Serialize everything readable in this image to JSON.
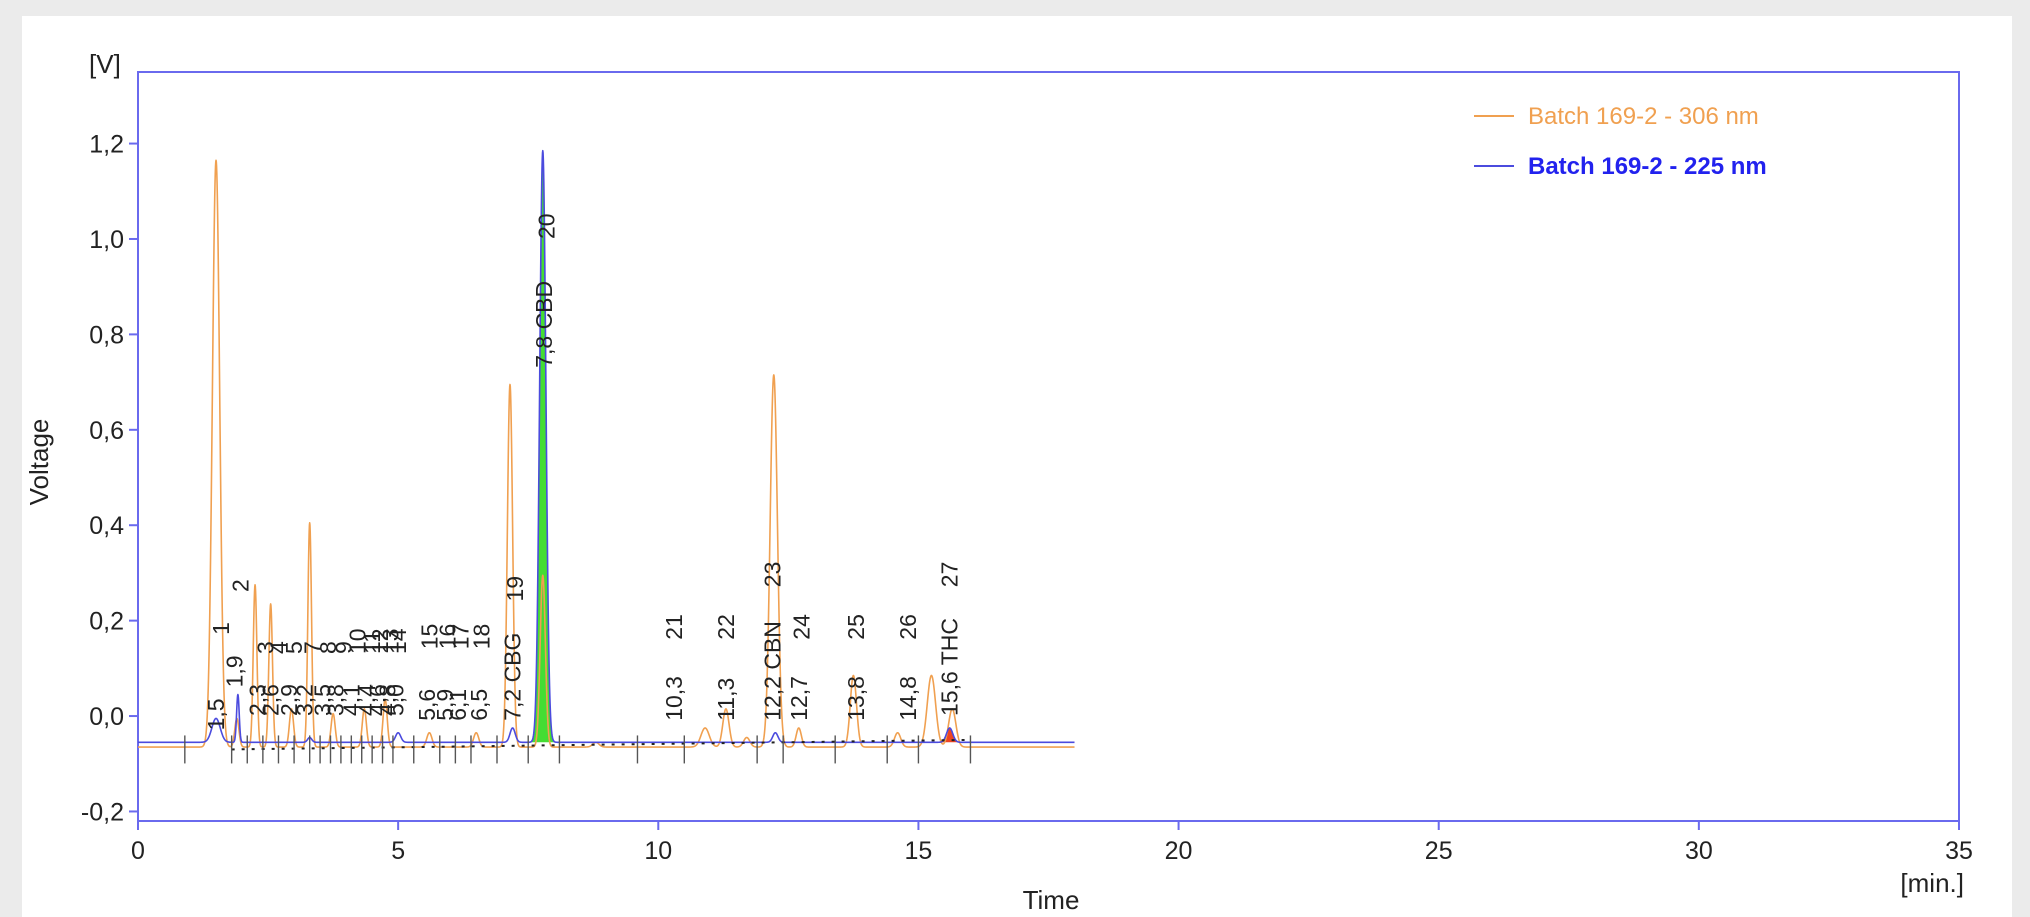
{
  "chart_data": {
    "type": "line",
    "title": "",
    "xlabel": "Time",
    "ylabel": "Voltage",
    "x_unit": "[min.]",
    "y_unit": "[V]",
    "xlim": [
      0,
      35
    ],
    "ylim": [
      -0.22,
      1.35
    ],
    "x_ticks": [
      0,
      5,
      10,
      15,
      20,
      25,
      30,
      35
    ],
    "x_tick_labels": [
      "0",
      "5",
      "10",
      "15",
      "20",
      "25",
      "30",
      "35"
    ],
    "y_ticks": [
      -0.2,
      0.0,
      0.2,
      0.4,
      0.6,
      0.8,
      1.0,
      1.2
    ],
    "y_tick_labels": [
      "-0,2",
      "0,0",
      "0,2",
      "0,4",
      "0,6",
      "0,8",
      "1,0",
      "1,2"
    ],
    "grid": false,
    "legend": "top-right",
    "series": [
      {
        "name": "Batch 169-2 - 306 nm",
        "color": "#f0a050",
        "baseline": -0.065,
        "peaks": [
          {
            "t": 1.5,
            "h": 1.23,
            "w": 0.07
          },
          {
            "t": 1.9,
            "h": 0.06,
            "w": 0.04
          },
          {
            "t": 2.25,
            "h": 0.34,
            "w": 0.035
          },
          {
            "t": 2.55,
            "h": 0.3,
            "w": 0.035
          },
          {
            "t": 2.95,
            "h": 0.08,
            "w": 0.04
          },
          {
            "t": 3.3,
            "h": 0.47,
            "w": 0.035
          },
          {
            "t": 3.75,
            "h": 0.07,
            "w": 0.04
          },
          {
            "t": 4.35,
            "h": 0.08,
            "w": 0.04
          },
          {
            "t": 4.75,
            "h": 0.1,
            "w": 0.04
          },
          {
            "t": 5.6,
            "h": 0.03,
            "w": 0.05
          },
          {
            "t": 6.5,
            "h": 0.03,
            "w": 0.05
          },
          {
            "t": 7.15,
            "h": 0.76,
            "w": 0.05
          },
          {
            "t": 7.78,
            "h": 0.36,
            "w": 0.05
          },
          {
            "t": 8.8,
            "h": 0.01,
            "w": 0.06
          },
          {
            "t": 10.9,
            "h": 0.04,
            "w": 0.08
          },
          {
            "t": 11.3,
            "h": 0.08,
            "w": 0.06
          },
          {
            "t": 11.7,
            "h": 0.02,
            "w": 0.06
          },
          {
            "t": 12.22,
            "h": 0.78,
            "w": 0.07
          },
          {
            "t": 12.7,
            "h": 0.04,
            "w": 0.05
          },
          {
            "t": 13.75,
            "h": 0.15,
            "w": 0.06
          },
          {
            "t": 14.6,
            "h": 0.03,
            "w": 0.06
          },
          {
            "t": 15.25,
            "h": 0.15,
            "w": 0.08
          },
          {
            "t": 15.65,
            "h": 0.08,
            "w": 0.07
          }
        ]
      },
      {
        "name": "Batch 169-2 - 225 nm",
        "color": "#4b4bde",
        "baseline": -0.055,
        "peaks": [
          {
            "t": 1.5,
            "h": 0.05,
            "w": 0.08
          },
          {
            "t": 1.92,
            "h": 0.1,
            "w": 0.025
          },
          {
            "t": 3.3,
            "h": 0.01,
            "w": 0.04
          },
          {
            "t": 5.0,
            "h": 0.02,
            "w": 0.05
          },
          {
            "t": 7.2,
            "h": 0.03,
            "w": 0.05
          },
          {
            "t": 7.78,
            "h": 1.24,
            "w": 0.06
          },
          {
            "t": 12.25,
            "h": 0.02,
            "w": 0.05
          },
          {
            "t": 15.6,
            "h": 0.03,
            "w": 0.06
          }
        ]
      }
    ],
    "highlighted_peaks": [
      {
        "label": "CBD",
        "t": 7.78,
        "h": 1.24,
        "w": 0.06,
        "color": "#44dd33"
      },
      {
        "label": "THC",
        "t": 15.6,
        "h": 0.03,
        "w": 0.06,
        "color": "#ee4422"
      }
    ],
    "peak_labels": [
      {
        "t": 1.5,
        "y": -0.03,
        "text": "1,5"
      },
      {
        "t": 1.6,
        "y": 0.17,
        "text": "1"
      },
      {
        "t": 1.85,
        "y": 0.06,
        "text": "1,9"
      },
      {
        "t": 1.97,
        "y": 0.26,
        "text": "2"
      },
      {
        "t": 2.3,
        "y": 0.0,
        "text": "2,3"
      },
      {
        "t": 2.45,
        "y": 0.13,
        "text": "3"
      },
      {
        "t": 2.55,
        "y": 0.0,
        "text": "2,6"
      },
      {
        "t": 2.7,
        "y": 0.13,
        "text": "4"
      },
      {
        "t": 2.9,
        "y": 0.0,
        "text": "2,9"
      },
      {
        "t": 3.0,
        "y": 0.13,
        "text": "5"
      },
      {
        "t": 3.2,
        "y": 0.0,
        "text": "3,2"
      },
      {
        "t": 3.35,
        "y": 0.13,
        "text": "7"
      },
      {
        "t": 3.55,
        "y": 0.0,
        "text": "3,5"
      },
      {
        "t": 3.65,
        "y": 0.13,
        "text": "8"
      },
      {
        "t": 3.8,
        "y": 0.0,
        "text": "3,8"
      },
      {
        "t": 3.95,
        "y": 0.13,
        "text": "9"
      },
      {
        "t": 4.1,
        "y": 0.0,
        "text": "4,1"
      },
      {
        "t": 4.22,
        "y": 0.13,
        "text": "10"
      },
      {
        "t": 4.4,
        "y": 0.0,
        "text": "4,4"
      },
      {
        "t": 4.5,
        "y": 0.13,
        "text": "11"
      },
      {
        "t": 4.6,
        "y": 0.0,
        "text": "4,6"
      },
      {
        "t": 4.65,
        "y": 0.13,
        "text": "12"
      },
      {
        "t": 4.8,
        "y": 0.0,
        "text": "4,8"
      },
      {
        "t": 4.85,
        "y": 0.13,
        "text": "13"
      },
      {
        "t": 4.95,
        "y": 0.0,
        "text": "5,0"
      },
      {
        "t": 5.0,
        "y": 0.13,
        "text": "14"
      },
      {
        "t": 5.55,
        "y": -0.01,
        "text": "5,6"
      },
      {
        "t": 5.6,
        "y": 0.14,
        "text": "15"
      },
      {
        "t": 5.9,
        "y": -0.01,
        "text": "5,9"
      },
      {
        "t": 5.95,
        "y": 0.14,
        "text": "16"
      },
      {
        "t": 6.15,
        "y": -0.01,
        "text": "6,1"
      },
      {
        "t": 6.2,
        "y": 0.14,
        "text": "17"
      },
      {
        "t": 6.55,
        "y": -0.01,
        "text": "6,5"
      },
      {
        "t": 6.6,
        "y": 0.14,
        "text": "18"
      },
      {
        "t": 7.2,
        "y": -0.01,
        "text": "7,2 CBG"
      },
      {
        "t": 7.25,
        "y": 0.24,
        "text": "19"
      },
      {
        "t": 7.8,
        "y": 0.73,
        "text": "7,8 CBD"
      },
      {
        "t": 7.85,
        "y": 1.0,
        "text": "20"
      },
      {
        "t": 10.3,
        "y": -0.01,
        "text": "10,3"
      },
      {
        "t": 10.3,
        "y": 0.16,
        "text": "21"
      },
      {
        "t": 11.3,
        "y": -0.01,
        "text": "11,3"
      },
      {
        "t": 11.3,
        "y": 0.16,
        "text": "22"
      },
      {
        "t": 12.2,
        "y": -0.01,
        "text": "12,2 CBN"
      },
      {
        "t": 12.2,
        "y": 0.27,
        "text": "23"
      },
      {
        "t": 12.7,
        "y": -0.01,
        "text": "12,7"
      },
      {
        "t": 12.75,
        "y": 0.16,
        "text": "24"
      },
      {
        "t": 13.8,
        "y": -0.01,
        "text": "13,8"
      },
      {
        "t": 13.8,
        "y": 0.16,
        "text": "25"
      },
      {
        "t": 14.8,
        "y": -0.01,
        "text": "14,8"
      },
      {
        "t": 14.8,
        "y": 0.16,
        "text": "26"
      },
      {
        "t": 15.6,
        "y": 0.0,
        "text": "15,6 THC"
      },
      {
        "t": 15.6,
        "y": 0.27,
        "text": "27"
      }
    ],
    "baseline_marks": [
      0.9,
      1.8,
      2.1,
      2.4,
      2.7,
      3.0,
      3.3,
      3.5,
      3.7,
      3.9,
      4.1,
      4.3,
      4.5,
      4.7,
      4.9,
      5.3,
      5.8,
      6.1,
      6.4,
      6.9,
      7.5,
      8.1,
      9.6,
      10.5,
      11.9,
      12.4,
      13.4,
      14.4,
      15.0,
      16.0
    ]
  }
}
